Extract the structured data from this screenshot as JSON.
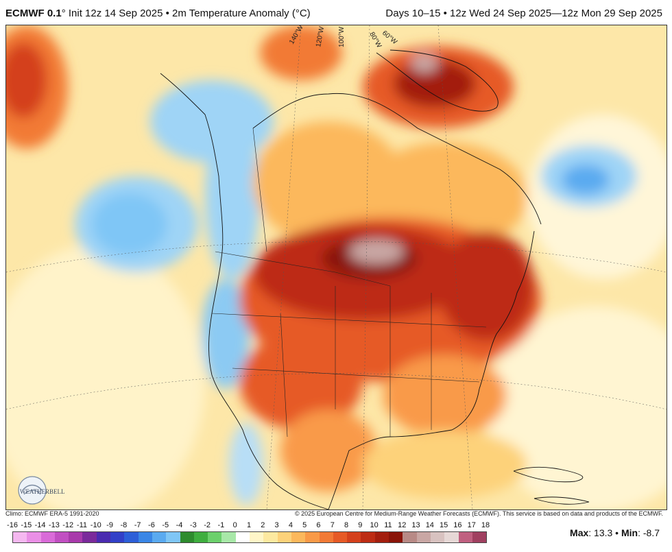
{
  "header": {
    "model": "ECMWF 0.1",
    "init_text": "° Init 12z 14 Sep 2025 • 2m Temperature Anomaly (°C)",
    "valid_text": "Days 10–15 • 12z Wed 24 Sep 2025—12z Mon 29 Sep 2025"
  },
  "map": {
    "longitude_labels": [
      "140°W",
      "120°W",
      "100°W",
      "80°W",
      "60°W"
    ],
    "logo_text": "WEATHERBELL"
  },
  "footer": {
    "climo": "Climo: ECMWF ERA-5 1991-2020",
    "copyright": "© 2025 European Centre for Medium-Range Weather Forecasts (ECMWF). This service is based on data and products of the ECMWF."
  },
  "colorbar": {
    "labels": [
      "-16",
      "-15",
      "-14",
      "-13",
      "-12",
      "-11",
      "-10",
      "-9",
      "-8",
      "-7",
      "-6",
      "-5",
      "-4",
      "-3",
      "-2",
      "-1",
      "0",
      "1",
      "2",
      "3",
      "4",
      "5",
      "6",
      "7",
      "8",
      "9",
      "10",
      "11",
      "12",
      "13",
      "14",
      "15",
      "16",
      "17",
      "18"
    ],
    "colors": [
      "#f5b8f0",
      "#ea8fe6",
      "#d96bd8",
      "#c14fc2",
      "#a83aab",
      "#7a2a9b",
      "#4a2bb0",
      "#3240c8",
      "#2d5fd8",
      "#3a86e6",
      "#5aaaf0",
      "#7fc6f6",
      "#2e8b2e",
      "#3fae3f",
      "#6cd06c",
      "#a8e8a8",
      "#ffffff",
      "#fff6c8",
      "#fde9a0",
      "#fdd27a",
      "#fcb85c",
      "#f99a48",
      "#f27a36",
      "#e65a26",
      "#d4401c",
      "#bd2c14",
      "#a31e0e",
      "#8a1408",
      "#b88a86",
      "#c9a7a4",
      "#d8c2c0",
      "#e6d8d6",
      "#c06080",
      "#a04060"
    ],
    "tick_step": 20.29
  },
  "stats": {
    "max_label": "Max",
    "max_value": ": 13.3 •",
    "min_label": "Min",
    "min_value": ": -8.7"
  }
}
